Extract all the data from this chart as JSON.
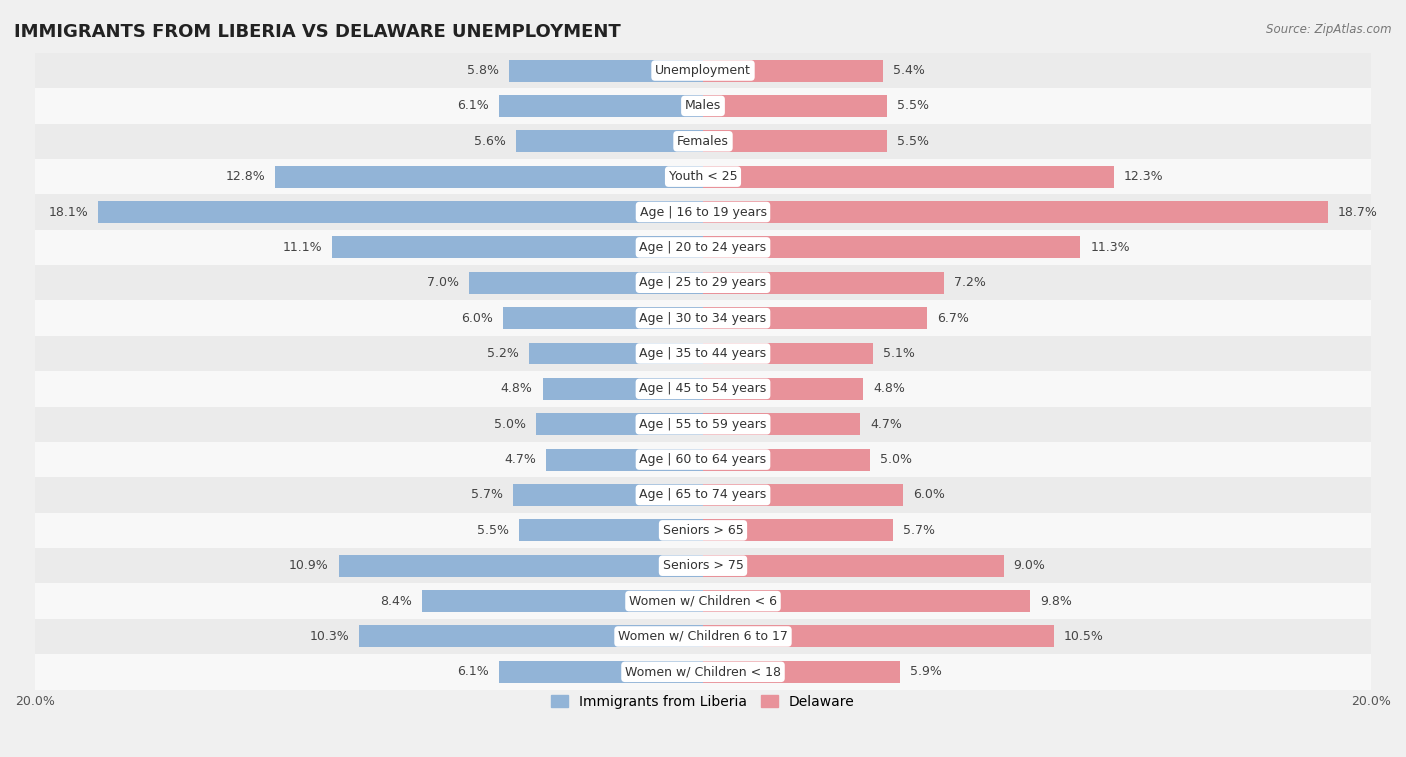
{
  "title": "IMMIGRANTS FROM LIBERIA VS DELAWARE UNEMPLOYMENT",
  "source": "Source: ZipAtlas.com",
  "categories": [
    "Unemployment",
    "Males",
    "Females",
    "Youth < 25",
    "Age | 16 to 19 years",
    "Age | 20 to 24 years",
    "Age | 25 to 29 years",
    "Age | 30 to 34 years",
    "Age | 35 to 44 years",
    "Age | 45 to 54 years",
    "Age | 55 to 59 years",
    "Age | 60 to 64 years",
    "Age | 65 to 74 years",
    "Seniors > 65",
    "Seniors > 75",
    "Women w/ Children < 6",
    "Women w/ Children 6 to 17",
    "Women w/ Children < 18"
  ],
  "liberia_values": [
    5.8,
    6.1,
    5.6,
    12.8,
    18.1,
    11.1,
    7.0,
    6.0,
    5.2,
    4.8,
    5.0,
    4.7,
    5.7,
    5.5,
    10.9,
    8.4,
    10.3,
    6.1
  ],
  "delaware_values": [
    5.4,
    5.5,
    5.5,
    12.3,
    18.7,
    11.3,
    7.2,
    6.7,
    5.1,
    4.8,
    4.7,
    5.0,
    6.0,
    5.7,
    9.0,
    9.8,
    10.5,
    5.9
  ],
  "liberia_color": "#92b4d7",
  "delaware_color": "#e8929a",
  "background_row_light": "#ebebeb",
  "background_row_white": "#f8f8f8",
  "axis_limit": 20.0,
  "bar_height": 0.62,
  "label_fontsize": 9,
  "category_fontsize": 9,
  "title_fontsize": 13,
  "legend_label_liberia": "Immigrants from Liberia",
  "legend_label_delaware": "Delaware"
}
